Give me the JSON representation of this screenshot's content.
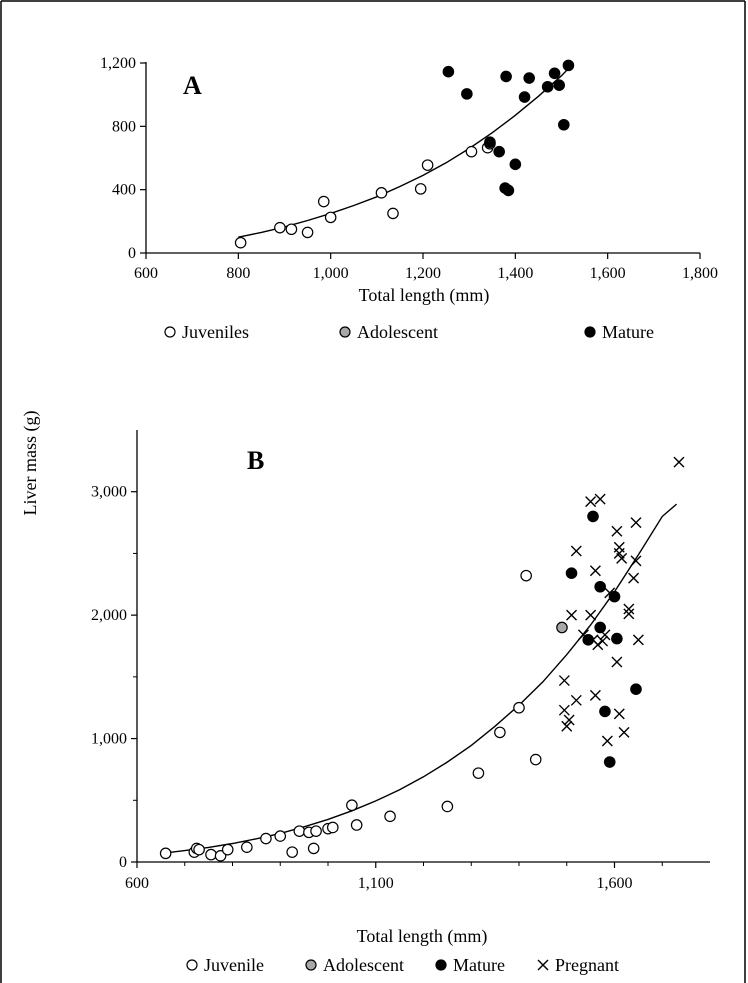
{
  "figure": {
    "shared_ylabel": "Liver mass (g)"
  },
  "colors": {
    "juvenile_fill": "#ffffff",
    "adolescent_fill": "#a8a8a8",
    "mature_fill": "#000000",
    "stroke": "#000000"
  },
  "chart_data": [
    {
      "type": "scatter",
      "panel_label": "A",
      "xlabel": "Total length (mm)",
      "ylabel": "Liver mass (g)",
      "xlim": [
        600,
        1800
      ],
      "ylim": [
        0,
        1200
      ],
      "xticks": [
        600,
        800,
        1000,
        1200,
        1400,
        1600,
        1800
      ],
      "yticks": [
        0,
        400,
        800,
        1200
      ],
      "xtick_labels": [
        "600",
        "800",
        "1,000",
        "1,200",
        "1,400",
        "1,600",
        "1,800"
      ],
      "ytick_labels": [
        "0",
        "400",
        "800",
        "1,200"
      ],
      "grid": false,
      "legend": {
        "placement": "below",
        "entries": [
          {
            "label": "Juveniles",
            "marker": "open-circle"
          },
          {
            "label": "Adolescent",
            "marker": "gray-circle"
          },
          {
            "label": "Mature",
            "marker": "filled-circle"
          }
        ]
      },
      "series": [
        {
          "name": "Juveniles",
          "marker": "open-circle",
          "points": [
            [
              805,
              65
            ],
            [
              890,
              160
            ],
            [
              915,
              150
            ],
            [
              950,
              130
            ],
            [
              985,
              325
            ],
            [
              1000,
              225
            ],
            [
              1110,
              380
            ],
            [
              1135,
              250
            ],
            [
              1195,
              405
            ],
            [
              1210,
              555
            ],
            [
              1305,
              640
            ],
            [
              1340,
              665
            ]
          ]
        },
        {
          "name": "Adolescent",
          "marker": "gray-circle",
          "points": [
            [
              1345,
              690
            ]
          ]
        },
        {
          "name": "Mature",
          "marker": "filled-circle",
          "points": [
            [
              1255,
              1145
            ],
            [
              1295,
              1005
            ],
            [
              1345,
              700
            ],
            [
              1365,
              640
            ],
            [
              1378,
              410
            ],
            [
              1380,
              1115
            ],
            [
              1385,
              395
            ],
            [
              1400,
              560
            ],
            [
              1420,
              985
            ],
            [
              1430,
              1105
            ],
            [
              1470,
              1050
            ],
            [
              1485,
              1135
            ],
            [
              1495,
              1060
            ],
            [
              1505,
              810
            ],
            [
              1515,
              1185
            ]
          ]
        }
      ],
      "fit_curve": {
        "x": [
          800,
          850,
          900,
          950,
          1000,
          1050,
          1100,
          1150,
          1200,
          1250,
          1300,
          1350,
          1400,
          1450,
          1500,
          1525
        ],
        "y": [
          100,
          130,
          165,
          205,
          250,
          300,
          355,
          420,
          490,
          570,
          660,
          760,
          870,
          990,
          1120,
          1195
        ]
      }
    },
    {
      "type": "scatter",
      "panel_label": "B",
      "xlabel": "Total length (mm)",
      "ylabel": "Liver mass (g)",
      "xlim": [
        600,
        1800
      ],
      "ylim": [
        0,
        3500
      ],
      "xticks": [
        600,
        1100,
        1600
      ],
      "yticks": [
        0,
        1000,
        2000,
        3000
      ],
      "xtick_labels": [
        "600",
        "1,100",
        "1,600"
      ],
      "ytick_labels": [
        "0",
        "1,000",
        "2,000",
        "3,000"
      ],
      "grid": false,
      "legend": {
        "placement": "below",
        "entries": [
          {
            "label": "Juvenile",
            "marker": "open-circle"
          },
          {
            "label": "Adolescent",
            "marker": "gray-circle"
          },
          {
            "label": "Mature",
            "marker": "filled-circle"
          },
          {
            "label": "Pregnant",
            "marker": "cross"
          }
        ]
      },
      "series": [
        {
          "name": "Juvenile",
          "marker": "open-circle",
          "points": [
            [
              660,
              70
            ],
            [
              720,
              80
            ],
            [
              725,
              110
            ],
            [
              730,
              100
            ],
            [
              755,
              60
            ],
            [
              775,
              50
            ],
            [
              790,
              100
            ],
            [
              830,
              120
            ],
            [
              870,
              190
            ],
            [
              900,
              210
            ],
            [
              925,
              80
            ],
            [
              940,
              250
            ],
            [
              960,
              240
            ],
            [
              970,
              110
            ],
            [
              975,
              250
            ],
            [
              1000,
              270
            ],
            [
              1010,
              280
            ],
            [
              1050,
              460
            ],
            [
              1060,
              300
            ],
            [
              1130,
              370
            ],
            [
              1250,
              450
            ],
            [
              1315,
              720
            ],
            [
              1360,
              1050
            ],
            [
              1400,
              1250
            ],
            [
              1415,
              2320
            ],
            [
              1435,
              830
            ]
          ]
        },
        {
          "name": "Adolescent",
          "marker": "gray-circle",
          "points": [
            [
              1490,
              1900
            ]
          ]
        },
        {
          "name": "Mature",
          "marker": "filled-circle",
          "points": [
            [
              1510,
              2340
            ],
            [
              1545,
              1800
            ],
            [
              1555,
              2800
            ],
            [
              1570,
              2230
            ],
            [
              1570,
              1900
            ],
            [
              1580,
              1220
            ],
            [
              1590,
              810
            ],
            [
              1600,
              2150
            ],
            [
              1605,
              1810
            ],
            [
              1645,
              1400
            ]
          ]
        },
        {
          "name": "Pregnant",
          "marker": "cross",
          "points": [
            [
              1495,
              1470
            ],
            [
              1495,
              1230
            ],
            [
              1500,
              1100
            ],
            [
              1505,
              1150
            ],
            [
              1510,
              2000
            ],
            [
              1520,
              2520
            ],
            [
              1520,
              1310
            ],
            [
              1535,
              1840
            ],
            [
              1550,
              2920
            ],
            [
              1550,
              2000
            ],
            [
              1555,
              1800
            ],
            [
              1560,
              2360
            ],
            [
              1560,
              1350
            ],
            [
              1565,
              1760
            ],
            [
              1570,
              2940
            ],
            [
              1575,
              1790
            ],
            [
              1580,
              1840
            ],
            [
              1585,
              980
            ],
            [
              1590,
              2180
            ],
            [
              1605,
              2680
            ],
            [
              1605,
              1620
            ],
            [
              1610,
              2500
            ],
            [
              1610,
              2550
            ],
            [
              1610,
              1200
            ],
            [
              1615,
              2460
            ],
            [
              1620,
              1050
            ],
            [
              1630,
              2050
            ],
            [
              1630,
              2010
            ],
            [
              1640,
              2300
            ],
            [
              1645,
              2440
            ],
            [
              1645,
              2750
            ],
            [
              1650,
              1800
            ],
            [
              1735,
              3240
            ]
          ]
        }
      ],
      "fit_curve": {
        "x": [
          650,
          700,
          750,
          800,
          850,
          900,
          950,
          1000,
          1050,
          1100,
          1150,
          1200,
          1250,
          1300,
          1350,
          1400,
          1450,
          1500,
          1550,
          1600,
          1650,
          1700,
          1730
        ],
        "y": [
          70,
          92,
          118,
          150,
          188,
          232,
          285,
          345,
          415,
          495,
          585,
          690,
          810,
          945,
          1100,
          1270,
          1460,
          1680,
          1920,
          2190,
          2490,
          2800,
          2900
        ]
      }
    }
  ]
}
